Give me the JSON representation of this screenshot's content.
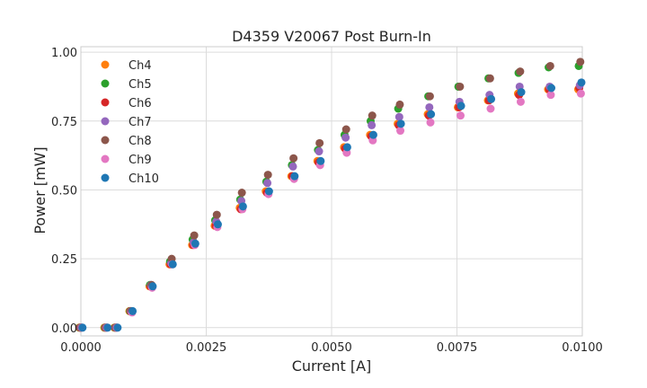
{
  "chart_data": {
    "type": "scatter",
    "title": "D4359 V20067 Post Burn-In",
    "xlabel": "Current [A]",
    "ylabel": "Power [mW]",
    "xlim": [
      0,
      0.01
    ],
    "ylim": [
      -0.03,
      1.02
    ],
    "xticks": [
      0.0,
      0.0025,
      0.005,
      0.0075,
      0.01
    ],
    "xtick_labels": [
      "0.0000",
      "0.0025",
      "0.0050",
      "0.0075",
      "0.0100"
    ],
    "yticks": [
      0.0,
      0.25,
      0.5,
      0.75,
      1.0
    ],
    "ytick_labels": [
      "0.00",
      "0.25",
      "0.50",
      "0.75",
      "1.00"
    ],
    "grid": true,
    "legend_position": "top-left",
    "x": [
      0.0,
      0.0005,
      0.0007,
      0.001,
      0.0014,
      0.0018,
      0.00225,
      0.0027,
      0.0032,
      0.00372,
      0.00423,
      0.00475,
      0.00528,
      0.0058,
      0.00635,
      0.00695,
      0.00755,
      0.00815,
      0.00875,
      0.00935,
      0.00995
    ],
    "series": [
      {
        "name": "Ch4",
        "color": "#ff7f0e",
        "values": [
          0.0,
          0.0,
          0.0,
          0.06,
          0.15,
          0.23,
          0.3,
          0.37,
          0.435,
          0.495,
          0.55,
          0.605,
          0.655,
          0.7,
          0.74,
          0.775,
          0.8,
          0.825,
          0.85,
          0.865,
          0.865
        ]
      },
      {
        "name": "Ch5",
        "color": "#2ca02c",
        "values": [
          0.0,
          0.0,
          0.0,
          0.06,
          0.155,
          0.24,
          0.32,
          0.39,
          0.465,
          0.53,
          0.59,
          0.645,
          0.7,
          0.75,
          0.795,
          0.84,
          0.875,
          0.905,
          0.925,
          0.945,
          0.95
        ]
      },
      {
        "name": "Ch6",
        "color": "#d62728",
        "values": [
          0.0,
          0.0,
          0.0,
          0.06,
          0.15,
          0.23,
          0.3,
          0.37,
          0.43,
          0.49,
          0.55,
          0.6,
          0.65,
          0.695,
          0.735,
          0.77,
          0.8,
          0.825,
          0.845,
          0.865,
          0.87
        ]
      },
      {
        "name": "Ch7",
        "color": "#9467bd",
        "values": [
          0.0,
          0.0,
          0.0,
          0.06,
          0.155,
          0.235,
          0.31,
          0.385,
          0.46,
          0.525,
          0.585,
          0.64,
          0.69,
          0.735,
          0.765,
          0.8,
          0.82,
          0.845,
          0.875,
          0.875,
          0.88
        ]
      },
      {
        "name": "Ch8",
        "color": "#8c564b",
        "values": [
          0.0,
          0.0,
          0.0,
          0.06,
          0.155,
          0.25,
          0.335,
          0.41,
          0.49,
          0.555,
          0.615,
          0.67,
          0.72,
          0.77,
          0.81,
          0.84,
          0.875,
          0.905,
          0.93,
          0.95,
          0.965
        ]
      },
      {
        "name": "Ch9",
        "color": "#e377c2",
        "values": [
          0.0,
          0.0,
          0.0,
          0.055,
          0.145,
          0.23,
          0.3,
          0.365,
          0.43,
          0.485,
          0.54,
          0.59,
          0.635,
          0.68,
          0.715,
          0.745,
          0.77,
          0.795,
          0.82,
          0.845,
          0.85
        ]
      },
      {
        "name": "Ch10",
        "color": "#1f77b4",
        "values": [
          0.0,
          0.0,
          0.0,
          0.06,
          0.15,
          0.23,
          0.305,
          0.375,
          0.44,
          0.495,
          0.55,
          0.605,
          0.655,
          0.7,
          0.74,
          0.775,
          0.805,
          0.83,
          0.855,
          0.87,
          0.89
        ]
      }
    ]
  }
}
